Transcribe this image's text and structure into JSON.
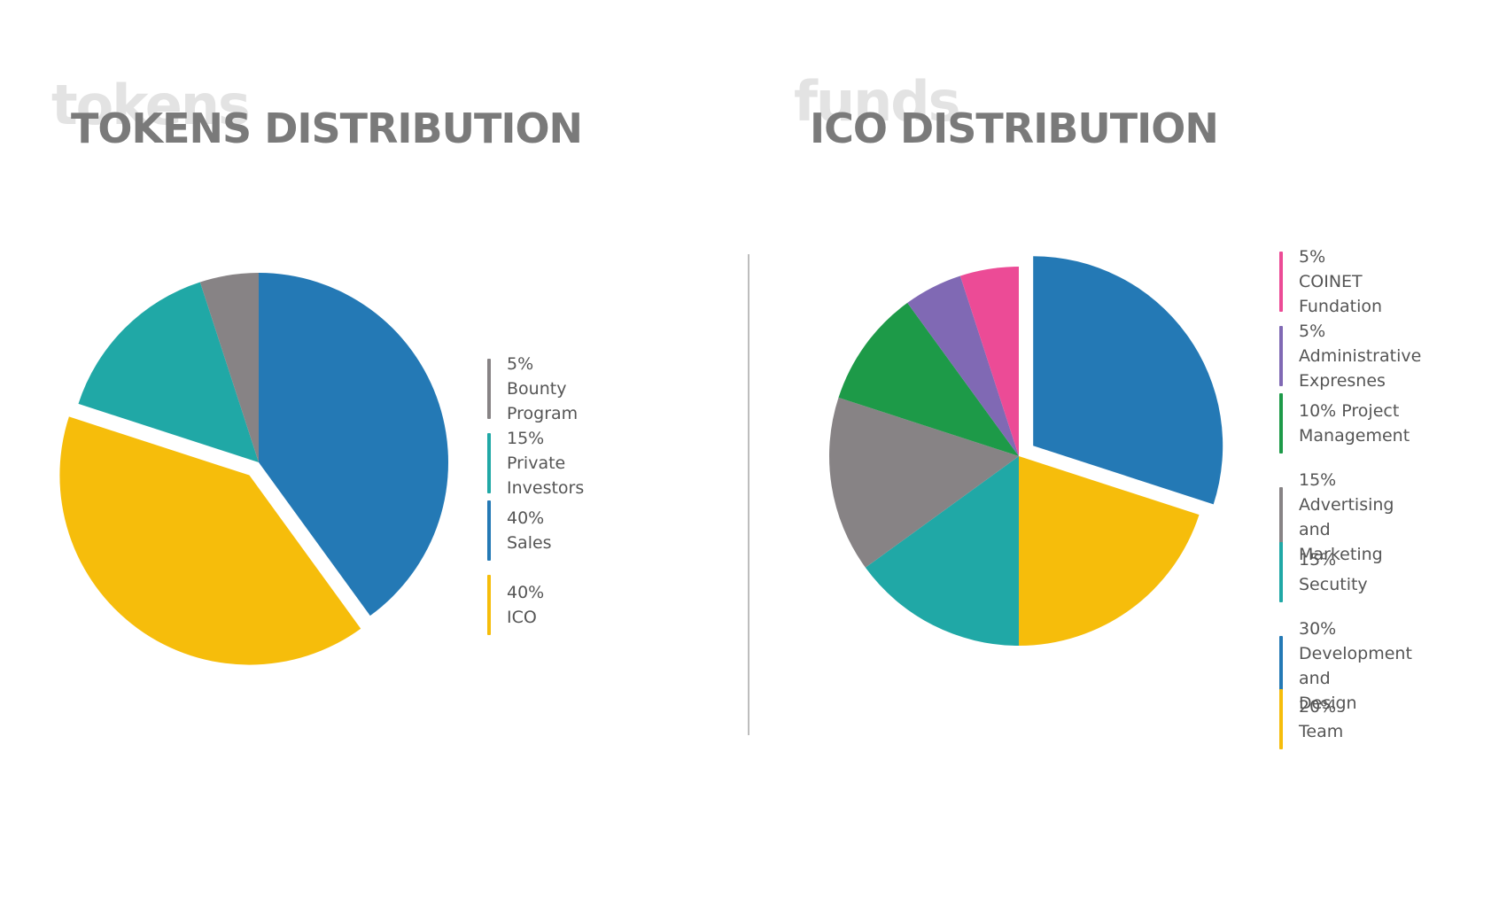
{
  "tokens_panel": {
    "background_word": "tokens",
    "title": "TOKENS DISTRIBUTION"
  },
  "ico_panel": {
    "background_word": "funds",
    "title": "ICO DISTRIBUTION"
  },
  "colors": {
    "gray": "#878385",
    "teal": "#20a8a6",
    "blue": "#2479b5",
    "yellow": "#f6bd0b",
    "green": "#1d9a48",
    "purple": "#8069b4",
    "pink": "#ec4b96",
    "divider": "#bdbdbd"
  },
  "chart_data": [
    {
      "type": "pie",
      "title": "TOKENS DISTRIBUTION",
      "start": "12 o'clock, clockwise",
      "slices": [
        {
          "label": "40% Sales",
          "value": 40,
          "color": "#2479b5",
          "exploded": false
        },
        {
          "label": "40% ICO",
          "value": 40,
          "color": "#f6bd0b",
          "exploded": true
        },
        {
          "label": "15% Private Investors",
          "value": 15,
          "color": "#20a8a6",
          "exploded": false
        },
        {
          "label": "5% Bounty Program",
          "value": 5,
          "color": "#878385",
          "exploded": false
        }
      ],
      "legend": [
        {
          "label": "5% Bounty Program",
          "color": "#878385"
        },
        {
          "label": "15% Private Investors",
          "color": "#20a8a6"
        },
        {
          "label": "40% Sales",
          "color": "#2479b5"
        },
        {
          "label": "40% ICO",
          "color": "#f6bd0b"
        }
      ],
      "legend_position": "right"
    },
    {
      "type": "pie",
      "title": "ICO DISTRIBUTION",
      "start": "12 o'clock, clockwise",
      "slices": [
        {
          "label": "30% Development and Design",
          "value": 30,
          "color": "#2479b5",
          "exploded": true
        },
        {
          "label": "20% Team",
          "value": 20,
          "color": "#f6bd0b",
          "exploded": false
        },
        {
          "label": "15% Secutity",
          "value": 15,
          "color": "#20a8a6",
          "exploded": false
        },
        {
          "label": "15% Advertising and Marketing",
          "value": 15,
          "color": "#878385",
          "exploded": false
        },
        {
          "label": "10% Project Management",
          "value": 10,
          "color": "#1d9a48",
          "exploded": false
        },
        {
          "label": "5% Administrative Expresnes",
          "value": 5,
          "color": "#8069b4",
          "exploded": false
        },
        {
          "label": "5% COINET Fundation",
          "value": 5,
          "color": "#ec4b96",
          "exploded": false
        }
      ],
      "legend": [
        {
          "label": "5% COINET Fundation",
          "color": "#ec4b96"
        },
        {
          "label": "5% Administrative\nExpresnes",
          "color": "#8069b4"
        },
        {
          "label": "10% Project\nManagement",
          "color": "#1d9a48"
        },
        {
          "label": "15% Advertising\nand Marketing",
          "color": "#878385"
        },
        {
          "label": "15% Secutity",
          "color": "#20a8a6"
        },
        {
          "label": "30% Development and\nDesign",
          "color": "#2479b5"
        },
        {
          "label": "20% Team",
          "color": "#f6bd0b"
        }
      ],
      "legend_position": "right"
    }
  ]
}
